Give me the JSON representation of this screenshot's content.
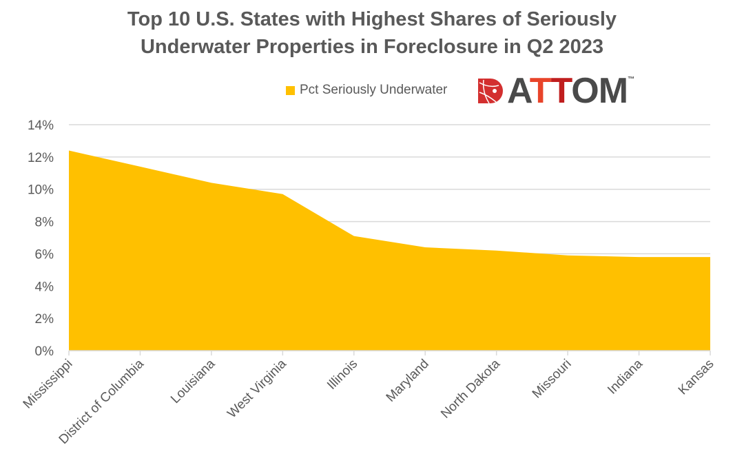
{
  "chart_data": {
    "type": "area",
    "title": "Top 10 U.S. States with Highest Shares of Seriously Underwater Properties in Foreclosure in Q2 2023",
    "title_lines": [
      "Top 10 U.S. States with Highest Shares of Seriously",
      "Underwater Properties in Foreclosure in Q2 2023"
    ],
    "categories": [
      "Mississippi",
      "District of Columbia",
      "Louisiana",
      "West Virginia",
      "Illinois",
      "Maryland",
      "North Dakota",
      "Missouri",
      "Indiana",
      "Kansas"
    ],
    "series": [
      {
        "name": "Pct Seriously Underwater",
        "values": [
          12.4,
          11.4,
          10.4,
          9.7,
          7.1,
          6.4,
          6.2,
          5.9,
          5.8,
          5.8
        ],
        "color": "#FFC000"
      }
    ],
    "ylim": [
      0,
      14
    ],
    "yticks": [
      "0%",
      "2%",
      "4%",
      "6%",
      "8%",
      "10%",
      "12%",
      "14%"
    ],
    "xlabel": "",
    "ylabel": "",
    "grid": true,
    "legend_position": "top"
  },
  "logo": {
    "text": "ATTOM",
    "tm": "™"
  }
}
